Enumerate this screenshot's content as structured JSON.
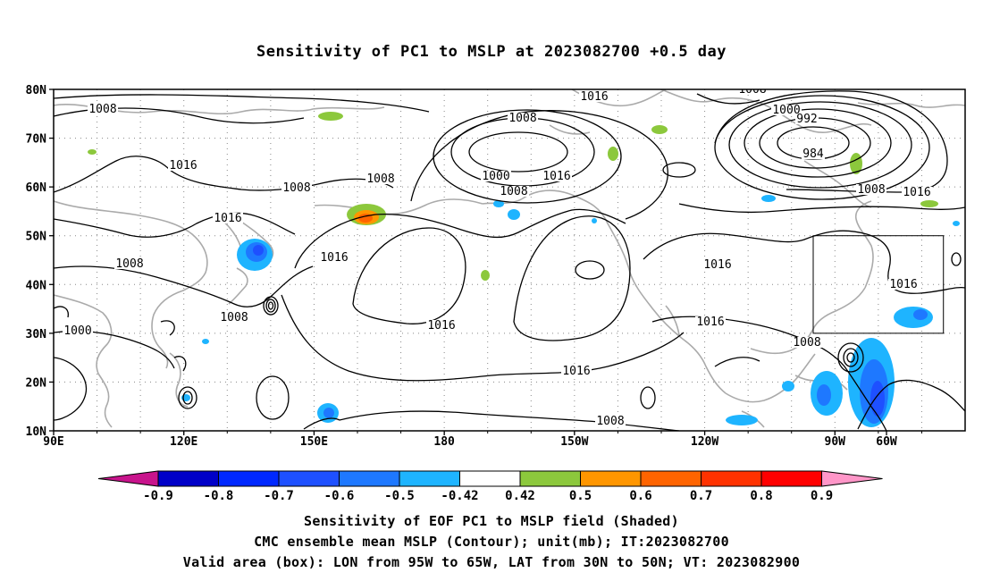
{
  "title": "Sensitivity of PC1 to MSLP at 2023082700 +0.5 day",
  "captions": [
    "Sensitivity of EOF PC1 to MSLP field (Shaded)",
    "CMC ensemble mean MSLP (Contour); unit(mb); IT:2023082700",
    "Valid area (box): LON from 95W to 65W, LAT from 30N to 50N; VT: 2023082900"
  ],
  "map": {
    "lon_range": [
      90,
      300
    ],
    "lat_range": [
      10,
      80
    ],
    "lat_labels": [
      "80N",
      "70N",
      "60N",
      "50N",
      "40N",
      "30N",
      "20N",
      "10N"
    ],
    "lon_labels": [
      "90E",
      "120E",
      "150E",
      "180",
      "150W",
      "120W",
      "90W",
      "60W"
    ],
    "valid_box": {
      "lon": [
        265,
        295
      ],
      "lat": [
        30,
        50
      ]
    },
    "contour_labels": [
      "1008",
      "1016",
      "1008",
      "1008",
      "1016",
      "1008",
      "1016",
      "1008",
      "1000",
      "1008",
      "1016",
      "1016",
      "1000",
      "1008",
      "1016",
      "1016",
      "1016",
      "1016",
      "1008",
      "1000",
      "992",
      "984",
      "1008",
      "1016",
      "1008",
      "1016",
      "1008"
    ]
  },
  "colorbar": {
    "labels": [
      "-0.9",
      "-0.8",
      "-0.7",
      "-0.6",
      "-0.5",
      "-0.42",
      "0.42",
      "0.5",
      "0.6",
      "0.7",
      "0.8",
      "0.9"
    ],
    "colors": [
      "#c8148c",
      "#0000c8",
      "#0028ff",
      "#1e50ff",
      "#1e78ff",
      "#1eb4ff",
      "#ffffff",
      "#8cc83c",
      "#ff9600",
      "#ff6400",
      "#ff3200",
      "#ff0000",
      "#ff96c8"
    ]
  }
}
